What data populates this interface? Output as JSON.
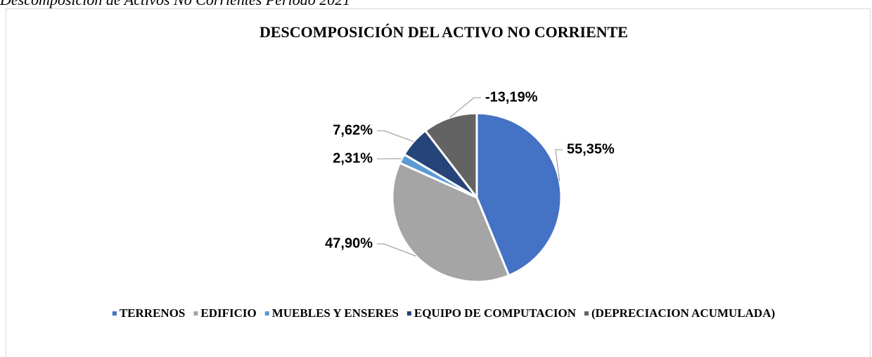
{
  "caption": "Descomposición de Activos No Corrientes Periodo 2021",
  "chart_data": {
    "type": "pie",
    "title": "DESCOMPOSICIÓN DEL ACTIVO NO CORRIENTE",
    "categories": [
      "TERRENOS",
      "EDIFICIO",
      "MUEBLES Y ENSERES",
      "EQUIPO DE COMPUTACION",
      "(DEPRECIACION ACUMULADA)"
    ],
    "values": [
      55.35,
      47.9,
      2.31,
      7.62,
      -13.19
    ],
    "value_labels": [
      "55,35%",
      "47,90%",
      "2,31%",
      "7,62%",
      "-13,19%"
    ],
    "colors": [
      "#4472c4",
      "#a5a5a5",
      "#5b9bd5",
      "#264478",
      "#636363"
    ],
    "legend": "bottom"
  }
}
